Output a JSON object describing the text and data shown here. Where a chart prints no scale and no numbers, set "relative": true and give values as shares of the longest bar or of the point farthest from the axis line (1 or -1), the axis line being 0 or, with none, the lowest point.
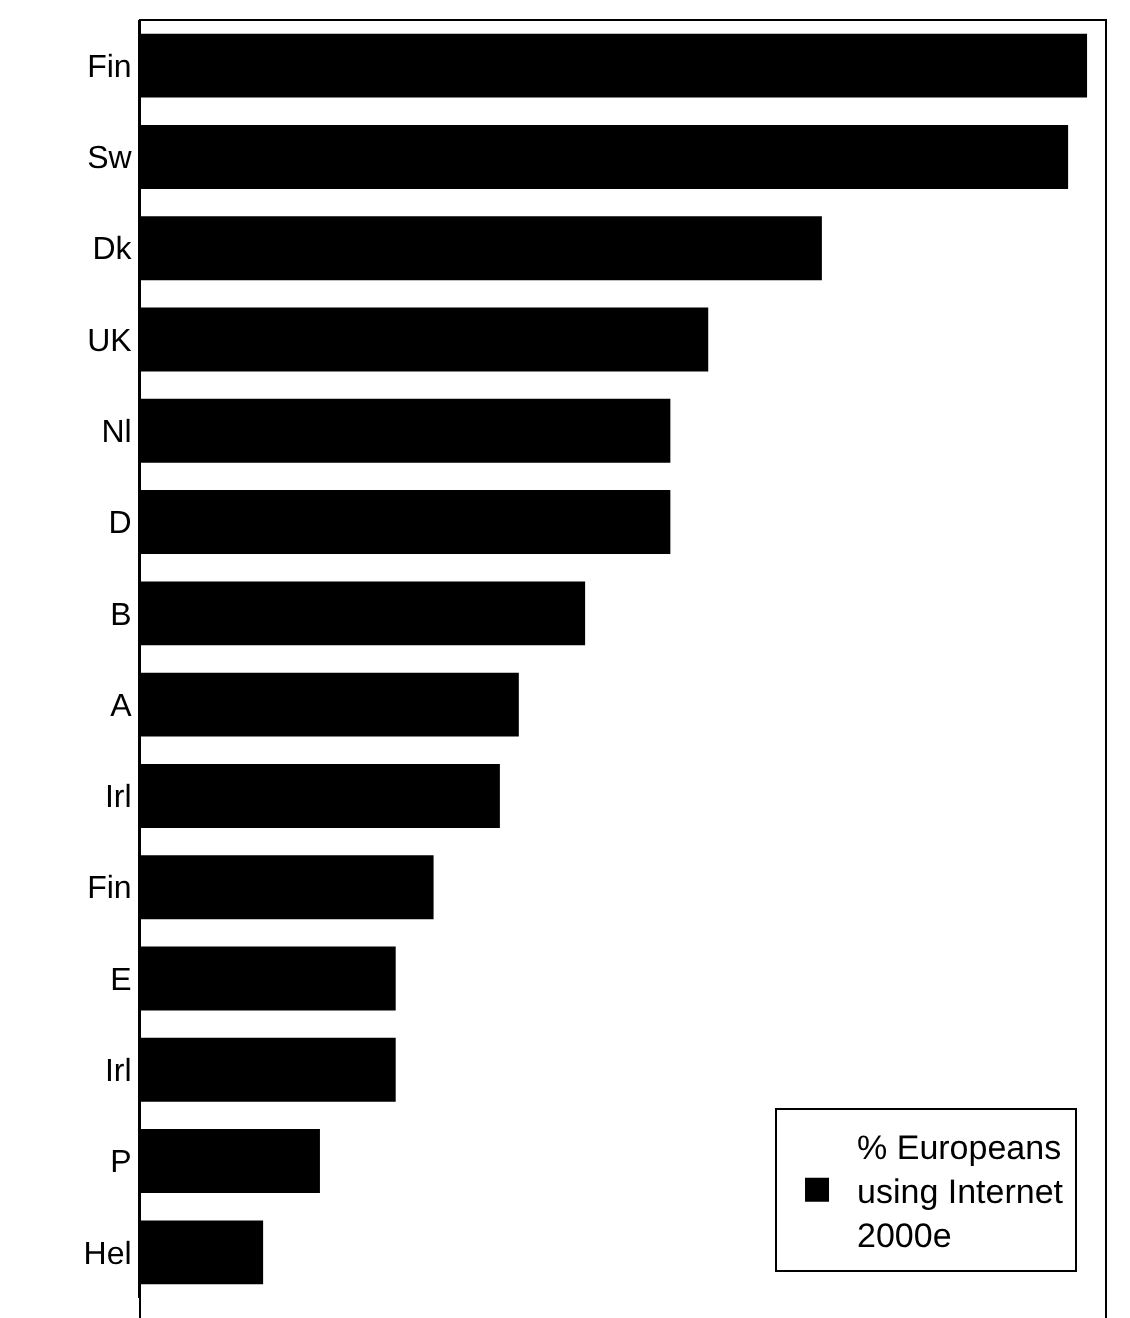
{
  "chart_data": {
    "type": "bar",
    "orientation": "horizontal",
    "relative": true,
    "categories": [
      "Fin",
      "Sw",
      "Dk",
      "UK",
      "Nl",
      "D",
      "B",
      "A",
      "Irl",
      "Fin",
      "E",
      "Irl",
      "P",
      "Hel"
    ],
    "series": [
      {
        "name": "% Europeans using Internet 2000e",
        "color": "#000000",
        "values": [
          1,
          0.98,
          0.72,
          0.6,
          0.56,
          0.56,
          0.47,
          0.4,
          0.38,
          0.31,
          0.27,
          0.27,
          0.19,
          0.13
        ]
      }
    ],
    "legend": "bottom right"
  }
}
